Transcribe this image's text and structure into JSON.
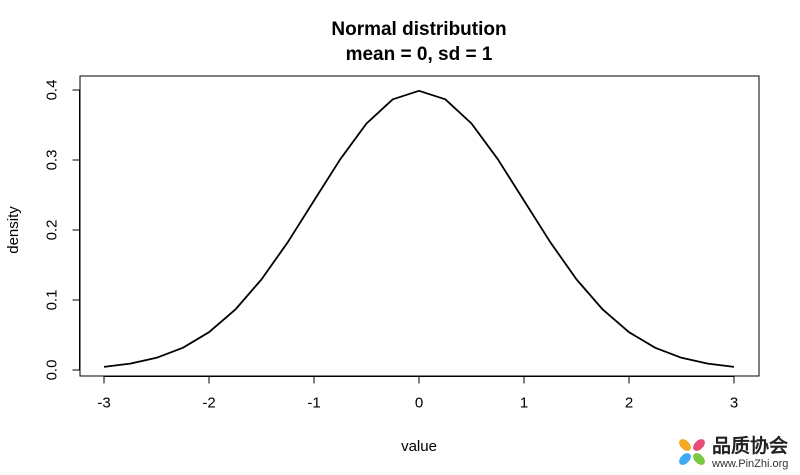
{
  "chart_data": {
    "type": "line",
    "title": "Normal distribution",
    "subtitle": "mean = 0, sd = 1",
    "xlabel": "value",
    "ylabel": "density",
    "xlim": [
      -3,
      3
    ],
    "ylim": [
      0,
      0.4
    ],
    "xticks": [
      "-3",
      "-2",
      "-1",
      "0",
      "1",
      "2",
      "3"
    ],
    "yticks": [
      "0.0",
      "0.1",
      "0.2",
      "0.3",
      "0.4"
    ],
    "grid": false,
    "series": [
      {
        "x": [
          -3.0,
          -2.75,
          -2.5,
          -2.25,
          -2.0,
          -1.75,
          -1.5,
          -1.25,
          -1.0,
          -0.75,
          -0.5,
          -0.25,
          0.0,
          0.25,
          0.5,
          0.75,
          1.0,
          1.25,
          1.5,
          1.75,
          2.0,
          2.25,
          2.5,
          2.75,
          3.0
        ],
        "y": [
          0.0044,
          0.0091,
          0.0175,
          0.0317,
          0.054,
          0.0863,
          0.1295,
          0.1826,
          0.242,
          0.3011,
          0.3521,
          0.3867,
          0.3989,
          0.3867,
          0.3521,
          0.3011,
          0.242,
          0.1826,
          0.1295,
          0.0863,
          0.054,
          0.0317,
          0.0175,
          0.0091,
          0.0044
        ]
      }
    ],
    "colors": {
      "line": "#000000",
      "axis": "#000000"
    }
  },
  "watermark": {
    "cn_text": "品质协会",
    "url_text": "www.PinZhi.org"
  }
}
